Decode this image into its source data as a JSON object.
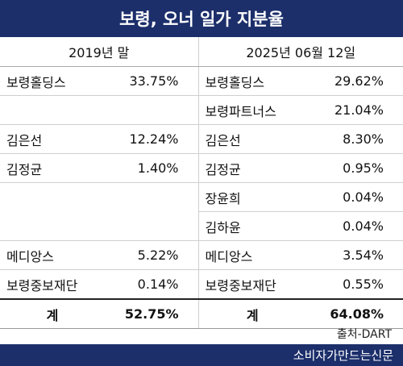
{
  "title": "보령, 오너 일가 지분율",
  "periods": [
    "2019년 말",
    "2025년 06월 12일"
  ],
  "rows": [
    {
      "left_name": "보령홀딩스",
      "left_value": "33.75%",
      "right_name": "보령홀딩스",
      "right_value": "29.62%"
    },
    {
      "left_name": "",
      "left_value": "",
      "right_name": "보령파트너스",
      "right_value": "21.04%"
    },
    {
      "left_name": "김은선",
      "left_value": "12.24%",
      "right_name": "김은선",
      "right_value": "8.30%"
    },
    {
      "left_name": "김정균",
      "left_value": "1.40%",
      "right_name": "김정균",
      "right_value": "0.95%"
    },
    {
      "left_name": "",
      "left_value": "",
      "right_name": "장윤희",
      "right_value": "0.04%"
    },
    {
      "left_name": "",
      "left_value": "",
      "right_name": "김하윤",
      "right_value": "0.04%"
    },
    {
      "left_name": "메디앙스",
      "left_value": "5.22%",
      "right_name": "메디앙스",
      "right_value": "3.54%"
    },
    {
      "left_name": "보령중보재단",
      "left_value": "0.14%",
      "right_name": "보령중보재단",
      "right_value": "0.55%"
    }
  ],
  "total": {
    "label": "계",
    "left_value": "52.75%",
    "right_value": "64.08%"
  },
  "source": "출처-DART",
  "publisher": "소비자가만드는신문",
  "colors": {
    "header_bg": "#1c2f6b",
    "header_text": "#ffffff"
  }
}
